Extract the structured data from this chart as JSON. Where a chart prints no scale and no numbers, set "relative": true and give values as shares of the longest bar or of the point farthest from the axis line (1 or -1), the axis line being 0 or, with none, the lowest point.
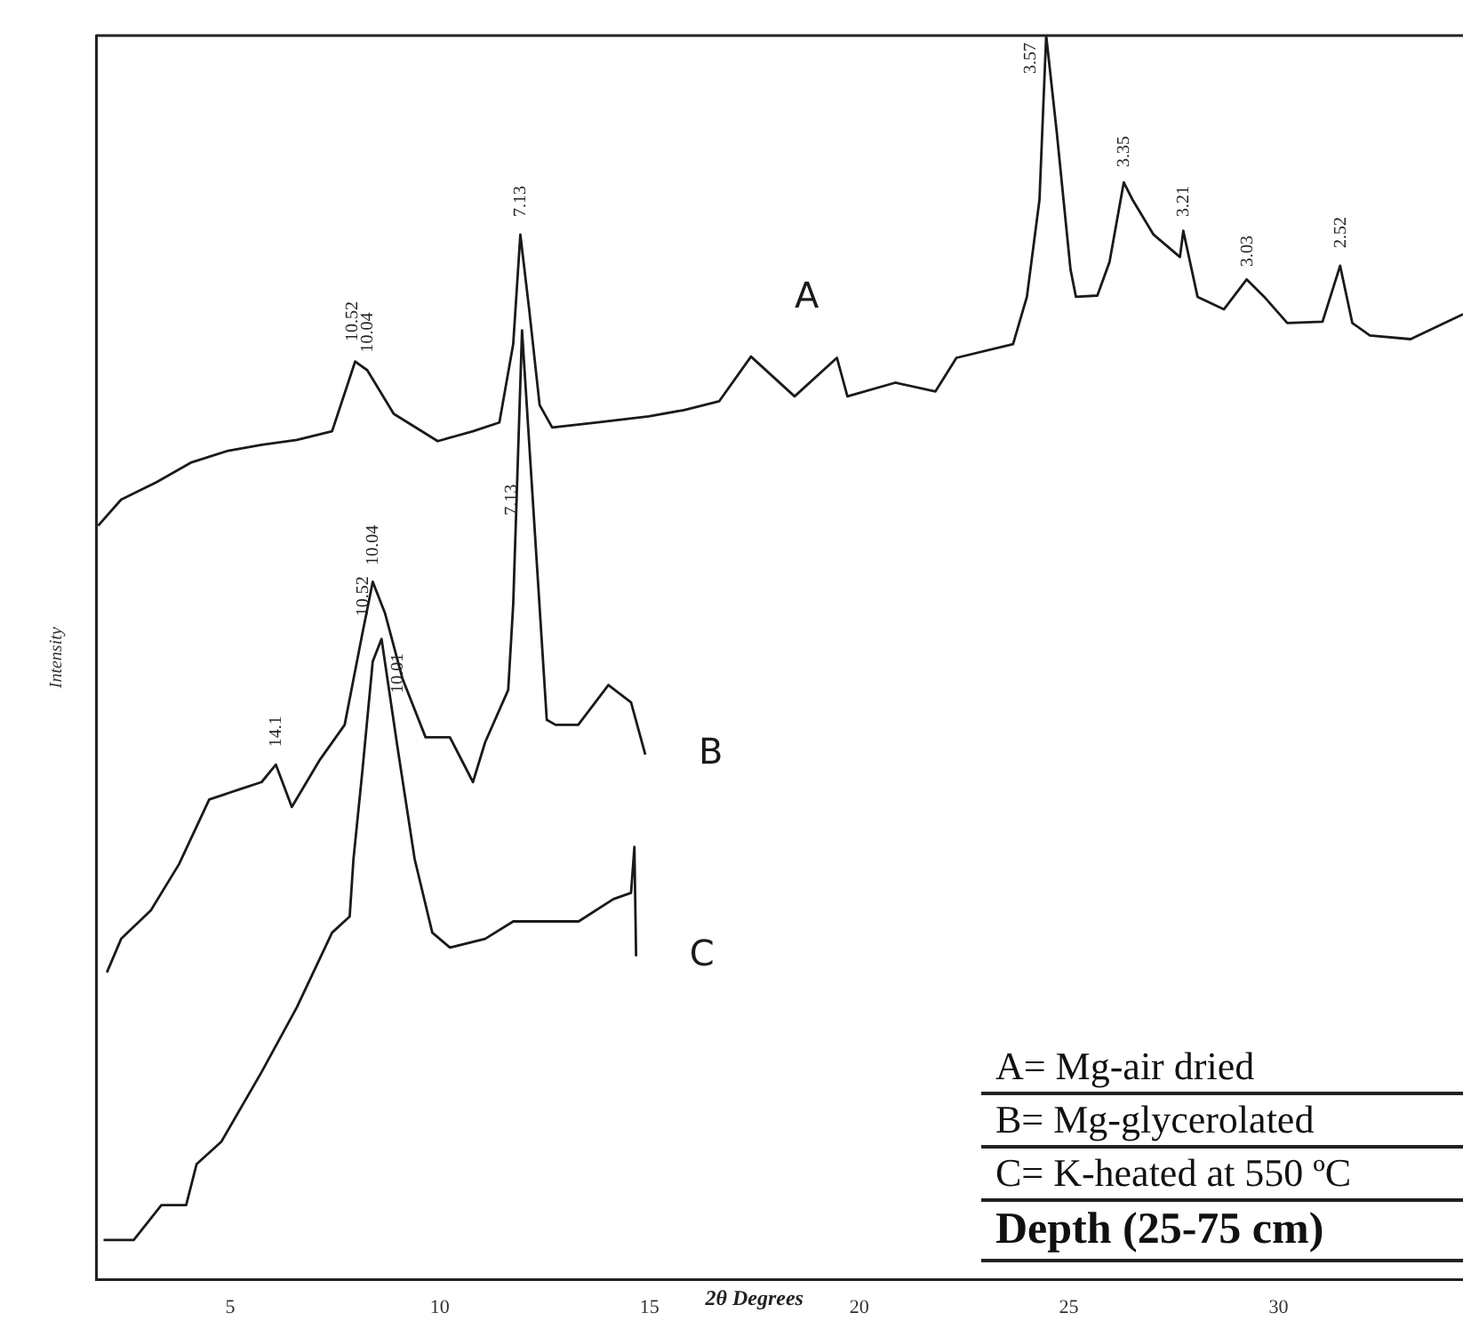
{
  "chart_data": {
    "type": "line",
    "title": "Depth (25-75 cm)",
    "xlabel": "2θ Degrees",
    "ylabel": "Intensity",
    "relative": true,
    "xlim": [
      1.8,
      34.4
    ],
    "xticks": [
      5,
      10,
      15,
      20,
      25,
      30
    ],
    "marker": "none",
    "line_style": "solid",
    "series": [
      {
        "name": "A",
        "color": "#1a1a1a",
        "x": [
          1.85,
          2.4,
          3.24,
          4.08,
          4.92,
          5.75,
          6.59,
          7.43,
          7.98,
          8.27,
          8.9,
          9.95,
          10.79,
          11.42,
          11.75,
          11.92,
          12.13,
          12.38,
          12.68,
          13.72,
          14.98,
          15.82,
          16.66,
          17.42,
          18.46,
          19.47,
          19.72,
          20.86,
          21.82,
          22.32,
          23.67,
          24.0,
          24.3,
          24.46,
          24.71,
          25.04,
          25.17,
          25.68,
          25.97,
          26.31,
          26.52,
          27.02,
          27.65,
          27.73,
          28.07,
          28.7,
          29.24,
          29.66,
          30.21,
          31.05,
          31.47,
          31.76,
          32.18,
          33.15,
          34.4
        ],
        "values": [
          0.606,
          0.627,
          0.641,
          0.657,
          0.666,
          0.671,
          0.675,
          0.682,
          0.738,
          0.731,
          0.696,
          0.674,
          0.682,
          0.689,
          0.752,
          0.84,
          0.78,
          0.703,
          0.685,
          0.689,
          0.694,
          0.699,
          0.706,
          0.742,
          0.71,
          0.741,
          0.71,
          0.721,
          0.714,
          0.741,
          0.752,
          0.79,
          0.868,
          1.0,
          0.923,
          0.812,
          0.79,
          0.791,
          0.818,
          0.882,
          0.868,
          0.84,
          0.822,
          0.843,
          0.79,
          0.78,
          0.804,
          0.79,
          0.769,
          0.77,
          0.815,
          0.769,
          0.759,
          0.756,
          0.776
        ]
      },
      {
        "name": "B",
        "color": "#1a1a1a",
        "x": [
          2.06,
          2.4,
          3.11,
          3.78,
          4.5,
          5.21,
          5.75,
          6.09,
          6.47,
          7.14,
          7.73,
          8.15,
          8.4,
          8.69,
          9.11,
          9.66,
          10.24,
          10.79,
          11.08,
          11.63,
          11.75,
          11.96,
          12.55,
          12.76,
          13.3,
          14.02,
          14.56,
          14.9
        ],
        "values": [
          0.247,
          0.274,
          0.297,
          0.334,
          0.386,
          0.394,
          0.4,
          0.414,
          0.38,
          0.418,
          0.446,
          0.519,
          0.561,
          0.536,
          0.483,
          0.436,
          0.436,
          0.4,
          0.432,
          0.474,
          0.543,
          0.763,
          0.45,
          0.446,
          0.446,
          0.478,
          0.464,
          0.422
        ]
      },
      {
        "name": "C",
        "color": "#1a1a1a",
        "x": [
          1.98,
          2.7,
          3.36,
          3.95,
          4.2,
          4.79,
          5.75,
          6.59,
          7.43,
          7.85,
          7.94,
          8.15,
          8.4,
          8.61,
          8.99,
          9.4,
          9.82,
          10.24,
          11.08,
          11.75,
          12.47,
          13.31,
          14.14,
          14.56,
          14.64,
          14.68
        ],
        "values": [
          0.032,
          0.032,
          0.06,
          0.06,
          0.093,
          0.111,
          0.167,
          0.219,
          0.279,
          0.292,
          0.338,
          0.408,
          0.497,
          0.515,
          0.428,
          0.338,
          0.279,
          0.267,
          0.274,
          0.288,
          0.288,
          0.288,
          0.306,
          0.311,
          0.348,
          0.26
        ]
      }
    ],
    "annotations": [
      {
        "text": "10.52",
        "x": 7.9,
        "y": 0.74
      },
      {
        "text": "10.04",
        "x": 8.27,
        "y": 0.731
      },
      {
        "text": "7.13",
        "x": 11.92,
        "y": 0.84
      },
      {
        "text": "3.57",
        "x": 24.46,
        "y": 1.0
      },
      {
        "text": "3.35",
        "x": 26.31,
        "y": 0.88
      },
      {
        "text": "3.21",
        "x": 27.73,
        "y": 0.84
      },
      {
        "text": "3.03",
        "x": 29.24,
        "y": 0.8
      },
      {
        "text": "2.52",
        "x": 31.47,
        "y": 0.815
      },
      {
        "text": "14.1",
        "x": 6.09,
        "y": 0.414
      },
      {
        "text": "10.52",
        "x": 8.15,
        "y": 0.519
      },
      {
        "text": "10.04",
        "x": 8.4,
        "y": 0.56
      },
      {
        "text": "7.13",
        "x": 11.7,
        "y": 0.6
      },
      {
        "text": "10.01",
        "x": 8.61,
        "y": 0.515
      },
      "A= Mg-air dried",
      "B= Mg-glycerolated",
      "C= K-heated at 550 ºC"
    ]
  }
}
